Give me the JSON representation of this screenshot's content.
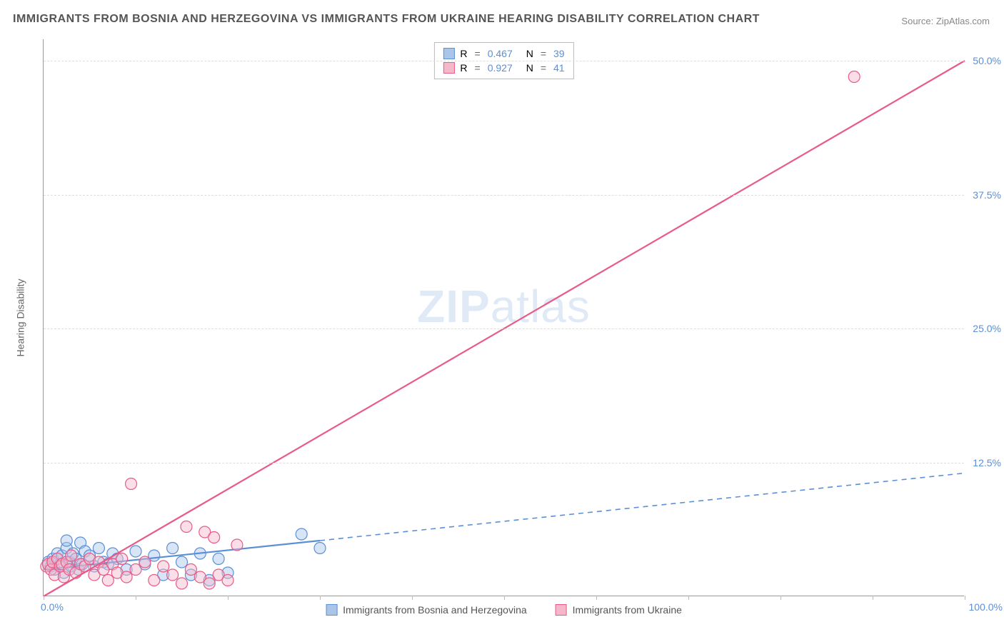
{
  "title": "IMMIGRANTS FROM BOSNIA AND HERZEGOVINA VS IMMIGRANTS FROM UKRAINE HEARING DISABILITY CORRELATION CHART",
  "source_label": "Source:",
  "source_value": "ZipAtlas.com",
  "watermark": "ZIPatlas",
  "ylabel": "Hearing Disability",
  "chart": {
    "type": "scatter",
    "xlim": [
      0,
      100
    ],
    "ylim": [
      0,
      52
    ],
    "x_origin_label": "0.0%",
    "x_max_label": "100.0%",
    "y_ticks": [
      12.5,
      25.0,
      37.5,
      50.0
    ],
    "y_tick_labels": [
      "12.5%",
      "25.0%",
      "37.5%",
      "50.0%"
    ],
    "x_tick_positions": [
      0,
      10,
      20,
      30,
      40,
      50,
      60,
      70,
      80,
      90,
      100
    ],
    "grid_color": "#dddddd",
    "background_color": "#ffffff",
    "marker_radius": 8,
    "marker_opacity": 0.45,
    "series": [
      {
        "id": "bosnia",
        "label": "Immigrants from Bosnia and Herzegovina",
        "R": "0.467",
        "N": "39",
        "color": "#5b8fd6",
        "fill": "#a9c5ea",
        "points": [
          [
            0.5,
            3.2
          ],
          [
            0.8,
            2.8
          ],
          [
            1.0,
            3.5
          ],
          [
            1.2,
            2.5
          ],
          [
            1.5,
            4.0
          ],
          [
            1.8,
            3.0
          ],
          [
            2.0,
            3.8
          ],
          [
            2.2,
            2.2
          ],
          [
            2.5,
            4.5
          ],
          [
            2.5,
            5.2
          ],
          [
            2.8,
            3.2
          ],
          [
            3.0,
            2.8
          ],
          [
            3.2,
            4.0
          ],
          [
            3.5,
            3.5
          ],
          [
            3.8,
            2.5
          ],
          [
            4.0,
            5.0
          ],
          [
            4.2,
            3.0
          ],
          [
            4.5,
            4.2
          ],
          [
            5.0,
            3.8
          ],
          [
            5.5,
            2.8
          ],
          [
            6.0,
            4.5
          ],
          [
            6.5,
            3.2
          ],
          [
            7.0,
            3.0
          ],
          [
            7.5,
            4.0
          ],
          [
            8.0,
            3.5
          ],
          [
            9.0,
            2.5
          ],
          [
            10.0,
            4.2
          ],
          [
            11.0,
            3.0
          ],
          [
            12.0,
            3.8
          ],
          [
            13.0,
            2.0
          ],
          [
            14.0,
            4.5
          ],
          [
            15.0,
            3.2
          ],
          [
            16.0,
            2.0
          ],
          [
            17.0,
            4.0
          ],
          [
            18.0,
            1.5
          ],
          [
            19.0,
            3.5
          ],
          [
            20.0,
            2.2
          ],
          [
            28.0,
            5.8
          ],
          [
            30.0,
            4.5
          ]
        ],
        "trend": {
          "x1": 0,
          "y1": 2.5,
          "x2": 30,
          "y2": 5.2,
          "solid_until_x": 30,
          "dash_to_x": 100,
          "dash_to_y": 11.5
        }
      },
      {
        "id": "ukraine",
        "label": "Immigrants from Ukraine",
        "R": "0.927",
        "N": "41",
        "color": "#e85b87",
        "fill": "#f5b8cb",
        "points": [
          [
            0.3,
            2.8
          ],
          [
            0.5,
            3.0
          ],
          [
            0.8,
            2.5
          ],
          [
            1.0,
            3.2
          ],
          [
            1.2,
            2.0
          ],
          [
            1.5,
            3.5
          ],
          [
            1.8,
            2.8
          ],
          [
            2.0,
            3.0
          ],
          [
            2.2,
            1.8
          ],
          [
            2.5,
            3.2
          ],
          [
            2.8,
            2.5
          ],
          [
            3.0,
            3.8
          ],
          [
            3.5,
            2.2
          ],
          [
            4.0,
            3.0
          ],
          [
            4.5,
            2.8
          ],
          [
            5.0,
            3.5
          ],
          [
            5.5,
            2.0
          ],
          [
            6.0,
            3.2
          ],
          [
            6.5,
            2.5
          ],
          [
            7.0,
            1.5
          ],
          [
            7.5,
            3.0
          ],
          [
            8.0,
            2.2
          ],
          [
            8.5,
            3.5
          ],
          [
            9.0,
            1.8
          ],
          [
            9.5,
            10.5
          ],
          [
            10.0,
            2.5
          ],
          [
            11.0,
            3.2
          ],
          [
            12.0,
            1.5
          ],
          [
            13.0,
            2.8
          ],
          [
            14.0,
            2.0
          ],
          [
            15.0,
            1.2
          ],
          [
            15.5,
            6.5
          ],
          [
            16.0,
            2.5
          ],
          [
            17.0,
            1.8
          ],
          [
            17.5,
            6.0
          ],
          [
            18.0,
            1.2
          ],
          [
            18.5,
            5.5
          ],
          [
            19.0,
            2.0
          ],
          [
            20.0,
            1.5
          ],
          [
            21.0,
            4.8
          ],
          [
            88.0,
            48.5
          ]
        ],
        "trend": {
          "x1": 0,
          "y1": 0,
          "x2": 100,
          "y2": 50.0,
          "solid_until_x": 100
        }
      }
    ]
  },
  "legend_top": {
    "r_label": "R",
    "n_label": "N",
    "eq": "="
  },
  "colors": {
    "text": "#555555",
    "tick_text": "#5b8fd6",
    "axis": "#999999"
  }
}
